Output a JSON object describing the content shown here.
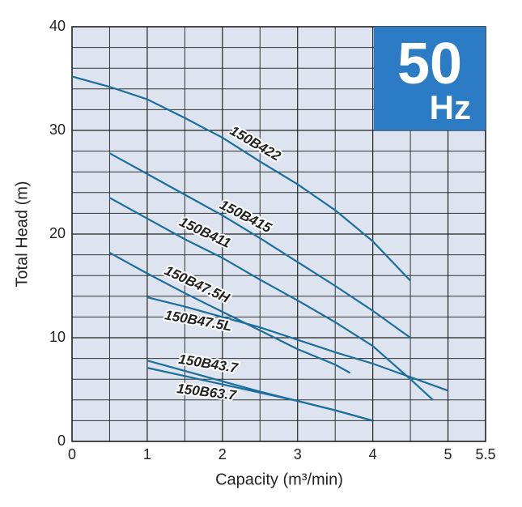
{
  "chart_data": {
    "type": "line",
    "xlabel": "Capacity (m³/min)",
    "ylabel": "Total Head (m)",
    "badge_number": "50",
    "badge_unit": "Hz",
    "badge_color": "#2b7cc4",
    "color": "#1b6f9c",
    "background": "#dde4f0",
    "xlim": [
      0,
      5.5
    ],
    "ylim": [
      0,
      40
    ],
    "xticks": [
      0,
      1,
      2,
      3,
      4,
      5,
      5.5
    ],
    "yticks": [
      0,
      10,
      20,
      30,
      40
    ],
    "xminorticks": [
      0.5,
      1.5,
      2.5,
      3.5,
      4.5
    ],
    "yminorticks": [
      2,
      4,
      6,
      8,
      12,
      14,
      16,
      18,
      22,
      24,
      26,
      28,
      32,
      34,
      36,
      38
    ],
    "grid": true,
    "series": [
      {
        "name": "150B422",
        "x": [
          0,
          0.5,
          1,
          1.5,
          2,
          2.5,
          3,
          3.5,
          4,
          4.5
        ],
        "values": [
          35.2,
          34.2,
          33.0,
          31.2,
          29.3,
          27.0,
          24.8,
          22.3,
          19.3,
          15.5
        ]
      },
      {
        "name": "150B415",
        "x": [
          0.5,
          1,
          1.5,
          2,
          2.5,
          3,
          3.5,
          4,
          4.5
        ],
        "values": [
          27.8,
          25.8,
          23.8,
          21.8,
          19.6,
          17.3,
          15.0,
          12.6,
          10.0
        ]
      },
      {
        "name": "150B411",
        "x": [
          0.5,
          1,
          1.5,
          2,
          2.5,
          3,
          3.5,
          4,
          4.5,
          4.8
        ],
        "values": [
          23.5,
          21.5,
          19.5,
          17.7,
          15.6,
          13.6,
          11.5,
          9.2,
          6.0,
          4.0
        ]
      },
      {
        "name": "150B47.5H",
        "x": [
          0.5,
          1,
          1.5,
          2,
          2.5,
          3,
          3.5,
          3.7
        ],
        "values": [
          18.2,
          16.2,
          14.3,
          12.5,
          10.7,
          8.9,
          7.4,
          6.6
        ]
      },
      {
        "name": "150B47.5L",
        "x": [
          1,
          1.5,
          2,
          2.5,
          3,
          3.5,
          4,
          4.5,
          5
        ],
        "values": [
          13.9,
          13.0,
          12.0,
          11.0,
          9.8,
          8.6,
          7.5,
          6.2,
          4.9
        ]
      },
      {
        "name": "150B43.7",
        "x": [
          1,
          1.5,
          2,
          2.5,
          3,
          3.5,
          4
        ],
        "values": [
          7.8,
          6.8,
          5.8,
          4.8,
          3.9,
          3.0,
          2.0
        ]
      },
      {
        "name": "150B63.7",
        "x": [
          1,
          1.5,
          2,
          2.5,
          3,
          3.5,
          4
        ],
        "values": [
          7.1,
          6.3,
          5.5,
          4.7,
          3.9,
          3.0,
          2.0
        ]
      }
    ]
  }
}
